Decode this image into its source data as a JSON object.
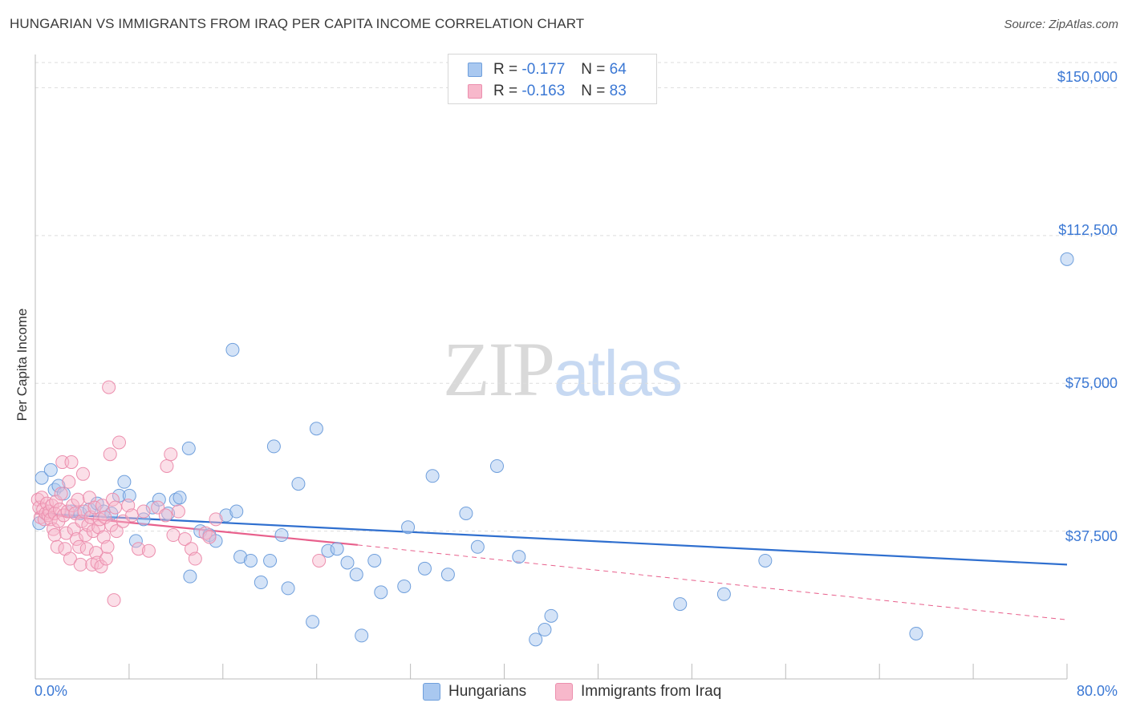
{
  "title": "HUNGARIAN VS IMMIGRANTS FROM IRAQ PER CAPITA INCOME CORRELATION CHART",
  "source": "Source: ZipAtlas.com",
  "watermark": {
    "zip": "ZIP",
    "atlas": "atlas"
  },
  "legend": {
    "rows": [
      {
        "r_label": "R =",
        "r_value": "-0.177",
        "n_label": "N =",
        "n_value": "64"
      },
      {
        "r_label": "R =",
        "r_value": "-0.163",
        "n_label": "N =",
        "n_value": "83"
      }
    ]
  },
  "bottom_legend": {
    "series1": "Hungarians",
    "series2": "Immigrants from Iraq"
  },
  "x_axis": {
    "min_label": "0.0%",
    "max_label": "80.0%"
  },
  "y_axis": {
    "label": "Per Capita Income",
    "ticks": [
      "$150,000",
      "$112,500",
      "$75,000",
      "$37,500"
    ]
  },
  "colors": {
    "blue_fill": "#a9c8f0",
    "blue_stroke": "#6f9fdc",
    "blue_line": "#2f6fcf",
    "pink_fill": "#f7b8cb",
    "pink_stroke": "#ec8fae",
    "pink_line": "#e8608c",
    "axis_text": "#3b78d4",
    "grid": "#dddddd"
  },
  "chart_data": {
    "type": "scatter",
    "xlabel": "",
    "ylabel": "Per Capita Income",
    "xlim": [
      0,
      80
    ],
    "ylim": [
      0,
      157000
    ],
    "y_ticks": [
      37500,
      75000,
      112500,
      150000
    ],
    "x_tick_count": 11,
    "series": [
      {
        "name": "Hungarians",
        "color": "#a9c8f0",
        "points": [
          [
            0.3,
            39500
          ],
          [
            0.5,
            51000
          ],
          [
            1.2,
            53000
          ],
          [
            1.5,
            48000
          ],
          [
            1.8,
            49000
          ],
          [
            2.2,
            47000
          ],
          [
            2.8,
            42500
          ],
          [
            3.5,
            42000
          ],
          [
            4.2,
            43000
          ],
          [
            4.8,
            44500
          ],
          [
            5.3,
            42500
          ],
          [
            5.9,
            42000
          ],
          [
            6.5,
            46500
          ],
          [
            6.9,
            50000
          ],
          [
            7.3,
            46500
          ],
          [
            7.8,
            35000
          ],
          [
            8.4,
            40500
          ],
          [
            9.1,
            43500
          ],
          [
            9.6,
            45500
          ],
          [
            10.3,
            42000
          ],
          [
            10.9,
            45500
          ],
          [
            11.2,
            46000
          ],
          [
            11.9,
            58500
          ],
          [
            12.0,
            26000
          ],
          [
            12.8,
            37500
          ],
          [
            13.5,
            36500
          ],
          [
            14.0,
            35000
          ],
          [
            14.8,
            41500
          ],
          [
            15.3,
            83500
          ],
          [
            15.6,
            42500
          ],
          [
            15.9,
            31000
          ],
          [
            16.7,
            30000
          ],
          [
            17.5,
            24500
          ],
          [
            18.2,
            30000
          ],
          [
            18.5,
            59000
          ],
          [
            19.1,
            36500
          ],
          [
            19.6,
            23000
          ],
          [
            20.4,
            49500
          ],
          [
            21.5,
            14500
          ],
          [
            21.8,
            63500
          ],
          [
            22.7,
            32500
          ],
          [
            23.4,
            33000
          ],
          [
            24.2,
            29500
          ],
          [
            24.9,
            26500
          ],
          [
            25.3,
            11000
          ],
          [
            26.3,
            30000
          ],
          [
            26.8,
            22000
          ],
          [
            28.6,
            23500
          ],
          [
            28.9,
            38500
          ],
          [
            30.2,
            28000
          ],
          [
            30.8,
            51500
          ],
          [
            32.0,
            26500
          ],
          [
            33.4,
            42000
          ],
          [
            34.3,
            33500
          ],
          [
            35.8,
            54000
          ],
          [
            37.5,
            31000
          ],
          [
            38.8,
            10000
          ],
          [
            39.5,
            12500
          ],
          [
            40.0,
            16000
          ],
          [
            50.0,
            19000
          ],
          [
            53.4,
            21500
          ],
          [
            56.6,
            30000
          ],
          [
            68.3,
            11500
          ],
          [
            80.0,
            106500
          ]
        ]
      },
      {
        "name": "Immigrants from Iraq",
        "color": "#f7b8cb",
        "points": [
          [
            0.2,
            45500
          ],
          [
            0.3,
            43500
          ],
          [
            0.4,
            41000
          ],
          [
            0.5,
            46000
          ],
          [
            0.6,
            43000
          ],
          [
            0.7,
            40500
          ],
          [
            0.8,
            42000
          ],
          [
            0.9,
            44500
          ],
          [
            1.0,
            41500
          ],
          [
            1.1,
            42500
          ],
          [
            1.2,
            40500
          ],
          [
            1.3,
            44000
          ],
          [
            1.4,
            38000
          ],
          [
            1.5,
            42000
          ],
          [
            1.5,
            36500
          ],
          [
            1.6,
            45000
          ],
          [
            1.7,
            33500
          ],
          [
            1.8,
            40000
          ],
          [
            1.9,
            43000
          ],
          [
            2.0,
            47000
          ],
          [
            2.1,
            55000
          ],
          [
            2.2,
            41500
          ],
          [
            2.3,
            33000
          ],
          [
            2.4,
            37000
          ],
          [
            2.5,
            42500
          ],
          [
            2.6,
            50000
          ],
          [
            2.7,
            30500
          ],
          [
            2.8,
            55000
          ],
          [
            2.9,
            44000
          ],
          [
            3.0,
            38000
          ],
          [
            3.1,
            42000
          ],
          [
            3.2,
            35500
          ],
          [
            3.3,
            45500
          ],
          [
            3.4,
            33500
          ],
          [
            3.5,
            29000
          ],
          [
            3.6,
            40000
          ],
          [
            3.7,
            52000
          ],
          [
            3.8,
            42500
          ],
          [
            3.9,
            36500
          ],
          [
            4.0,
            33000
          ],
          [
            4.1,
            39000
          ],
          [
            4.2,
            46000
          ],
          [
            4.3,
            41000
          ],
          [
            4.4,
            29000
          ],
          [
            4.5,
            37500
          ],
          [
            4.6,
            43500
          ],
          [
            4.7,
            32000
          ],
          [
            4.8,
            29500
          ],
          [
            4.9,
            38500
          ],
          [
            5.0,
            40500
          ],
          [
            5.1,
            28500
          ],
          [
            5.2,
            44000
          ],
          [
            5.3,
            36000
          ],
          [
            5.4,
            41000
          ],
          [
            5.5,
            30500
          ],
          [
            5.6,
            33500
          ],
          [
            5.7,
            74000
          ],
          [
            5.8,
            57000
          ],
          [
            5.9,
            39000
          ],
          [
            6.0,
            45500
          ],
          [
            6.1,
            20000
          ],
          [
            6.2,
            43500
          ],
          [
            6.3,
            37500
          ],
          [
            6.5,
            60000
          ],
          [
            6.8,
            40000
          ],
          [
            7.2,
            44000
          ],
          [
            7.5,
            41500
          ],
          [
            8.0,
            33000
          ],
          [
            8.4,
            42500
          ],
          [
            8.8,
            32500
          ],
          [
            9.5,
            43500
          ],
          [
            10.1,
            41500
          ],
          [
            10.2,
            54000
          ],
          [
            10.5,
            57000
          ],
          [
            10.7,
            36500
          ],
          [
            11.1,
            42500
          ],
          [
            11.6,
            35500
          ],
          [
            12.1,
            33000
          ],
          [
            12.4,
            30500
          ],
          [
            13.2,
            37000
          ],
          [
            13.5,
            36000
          ],
          [
            14.0,
            40500
          ],
          [
            22.0,
            30000
          ]
        ]
      }
    ],
    "trendlines": [
      {
        "series": "Hungarians",
        "x": [
          0,
          80
        ],
        "y": [
          42000,
          29000
        ],
        "style": "solid"
      },
      {
        "series": "Immigrants from Iraq",
        "x": [
          0,
          25
        ],
        "y": [
          42000,
          34000
        ],
        "style": "solid"
      },
      {
        "series": "Immigrants from Iraq",
        "x": [
          25,
          80
        ],
        "y": [
          34000,
          15000
        ],
        "style": "dashed"
      }
    ],
    "grid": true,
    "legend_position": "top-center"
  }
}
